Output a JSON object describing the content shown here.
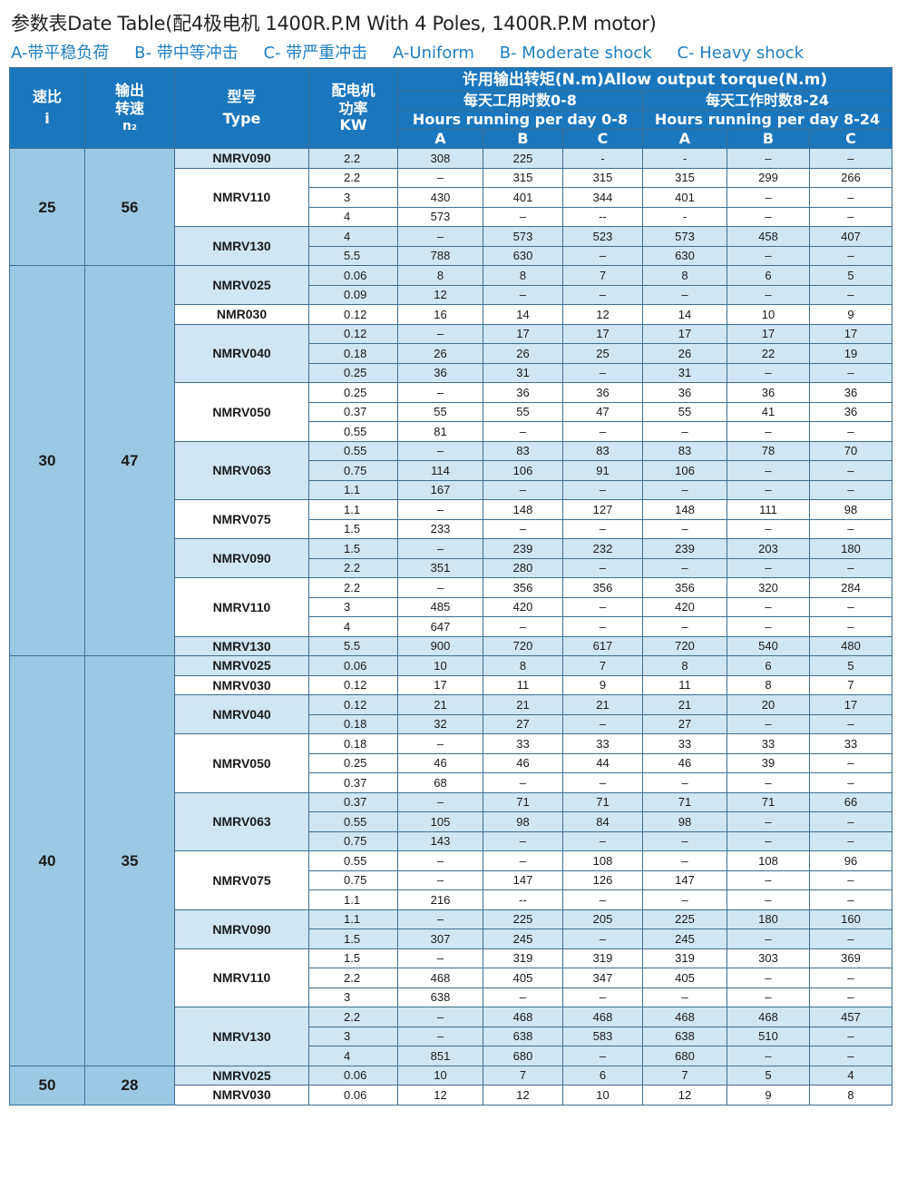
{
  "title": "参数表Date Table(配4极电机 1400R.P.M With 4 Poles, 1400R.P.M motor)",
  "legend": [
    "A-带平稳负荷",
    "B- 带中等冲击",
    "C- 带严重冲击",
    "A-Uniform",
    "B- Moderate shock",
    "C- Heavy shock"
  ],
  "header": {
    "ratio": [
      "速比",
      "i"
    ],
    "speed": [
      "输出",
      "转速",
      "n₂"
    ],
    "type": [
      "型号",
      "Type"
    ],
    "power": [
      "配电机",
      "功率",
      "KW"
    ],
    "torque": "许用输出转矩(N.m)Allow output torque(N.m)",
    "period1": [
      "每天工用时数0-8",
      "Hours running per day 0-8"
    ],
    "period2": [
      "每天工作时数8-24",
      "Hours running per day 8-24"
    ],
    "cols": [
      "A",
      "B",
      "C",
      "A",
      "B",
      "C"
    ]
  },
  "groups": [
    {
      "ratio": "25",
      "speed": "56",
      "models": [
        {
          "type": "NMRV090",
          "rows": [
            [
              "2.2",
              "308",
              "225",
              "-",
              "-",
              "–",
              "–"
            ]
          ]
        },
        {
          "type": "NMRV110",
          "rows": [
            [
              "2.2",
              "–",
              "315",
              "315",
              "315",
              "299",
              "266"
            ],
            [
              "3",
              "430",
              "401",
              "344",
              "401",
              "–",
              "–"
            ],
            [
              "4",
              "573",
              "–",
              "--",
              "-",
              "–",
              "–"
            ]
          ]
        },
        {
          "type": "NMRV130",
          "rows": [
            [
              "4",
              "–",
              "573",
              "523",
              "573",
              "458",
              "407"
            ],
            [
              "5.5",
              "788",
              "630",
              "–",
              "630",
              "–",
              "–"
            ]
          ]
        }
      ]
    },
    {
      "ratio": "30",
      "speed": "47",
      "models": [
        {
          "type": "NMRV025",
          "rows": [
            [
              "0.06",
              "8",
              "8",
              "7",
              "8",
              "6",
              "5"
            ],
            [
              "0.09",
              "12",
              "–",
              "–",
              "–",
              "–",
              "–"
            ]
          ]
        },
        {
          "type": "NMR030",
          "rows": [
            [
              "0.12",
              "16",
              "14",
              "12",
              "14",
              "10",
              "9"
            ]
          ]
        },
        {
          "type": "NMRV040",
          "rows": [
            [
              "0.12",
              "–",
              "17",
              "17",
              "17",
              "17",
              "17"
            ],
            [
              "0.18",
              "26",
              "26",
              "25",
              "26",
              "22",
              "19"
            ],
            [
              "0.25",
              "36",
              "31",
              "–",
              "31",
              "–",
              "–"
            ]
          ]
        },
        {
          "type": "NMRV050",
          "rows": [
            [
              "0.25",
              "–",
              "36",
              "36",
              "36",
              "36",
              "36"
            ],
            [
              "0.37",
              "55",
              "55",
              "47",
              "55",
              "41",
              "36"
            ],
            [
              "0.55",
              "81",
              "–",
              "–",
              "–",
              "–",
              "–"
            ]
          ]
        },
        {
          "type": "NMRV063",
          "rows": [
            [
              "0.55",
              "–",
              "83",
              "83",
              "83",
              "78",
              "70"
            ],
            [
              "0.75",
              "114",
              "106",
              "91",
              "106",
              "–",
              "–"
            ],
            [
              "1.1",
              "167",
              "–",
              "–",
              "–",
              "–",
              "–"
            ]
          ]
        },
        {
          "type": "NMRV075",
          "rows": [
            [
              "1.1",
              "–",
              "148",
              "127",
              "148",
              "111",
              "98"
            ],
            [
              "1.5",
              "233",
              "–",
              "–",
              "–",
              "–",
              "–"
            ]
          ]
        },
        {
          "type": "NMRV090",
          "rows": [
            [
              "1.5",
              "–",
              "239",
              "232",
              "239",
              "203",
              "180"
            ],
            [
              "2.2",
              "351",
              "280",
              "–",
              "–",
              "–",
              "–"
            ]
          ]
        },
        {
          "type": "NMRV110",
          "rows": [
            [
              "2.2",
              "–",
              "356",
              "356",
              "356",
              "320",
              "284"
            ],
            [
              "3",
              "485",
              "420",
              "–",
              "420",
              "–",
              "–"
            ],
            [
              "4",
              "647",
              "–",
              "–",
              "–",
              "–",
              "–"
            ]
          ]
        },
        {
          "type": "NMRV130",
          "rows": [
            [
              "5.5",
              "900",
              "720",
              "617",
              "720",
              "540",
              "480"
            ]
          ]
        }
      ]
    },
    {
      "ratio": "40",
      "speed": "35",
      "models": [
        {
          "type": "NMRV025",
          "rows": [
            [
              "0.06",
              "10",
              "8",
              "7",
              "8",
              "6",
              "5"
            ]
          ]
        },
        {
          "type": "NMRV030",
          "rows": [
            [
              "0.12",
              "17",
              "11",
              "9",
              "11",
              "8",
              "7"
            ]
          ]
        },
        {
          "type": "NMRV040",
          "rows": [
            [
              "0.12",
              "21",
              "21",
              "21",
              "21",
              "20",
              "17"
            ],
            [
              "0.18",
              "32",
              "27",
              "–",
              "27",
              "–",
              "–"
            ]
          ]
        },
        {
          "type": "NMRV050",
          "rows": [
            [
              "0.18",
              "–",
              "33",
              "33",
              "33",
              "33",
              "33"
            ],
            [
              "0.25",
              "46",
              "46",
              "44",
              "46",
              "39",
              "–"
            ],
            [
              "0.37",
              "68",
              "–",
              "–",
              "–",
              "–",
              "–"
            ]
          ]
        },
        {
          "type": "NMRV063",
          "rows": [
            [
              "0.37",
              "–",
              "71",
              "71",
              "71",
              "71",
              "66"
            ],
            [
              "0.55",
              "105",
              "98",
              "84",
              "98",
              "–",
              "–"
            ],
            [
              "0.75",
              "143",
              "–",
              "–",
              "–",
              "–",
              "–"
            ]
          ]
        },
        {
          "type": "NMRV075",
          "rows": [
            [
              "0.55",
              "–",
              "–",
              "108",
              "–",
              "108",
              "96"
            ],
            [
              "0.75",
              "–",
              "147",
              "126",
              "147",
              "–",
              "–"
            ],
            [
              "1.1",
              "216",
              "--",
              "–",
              "–",
              "–",
              "–"
            ]
          ]
        },
        {
          "type": "NMRV090",
          "rows": [
            [
              "1.1",
              "–",
              "225",
              "205",
              "225",
              "180",
              "160"
            ],
            [
              "1.5",
              "307",
              "245",
              "–",
              "245",
              "–",
              "–"
            ]
          ]
        },
        {
          "type": "NMRV110",
          "rows": [
            [
              "1.5",
              "–",
              "319",
              "319",
              "319",
              "303",
              "369"
            ],
            [
              "2.2",
              "468",
              "405",
              "347",
              "405",
              "–",
              "–"
            ],
            [
              "3",
              "638",
              "–",
              "–",
              "–",
              "–",
              "–"
            ]
          ]
        },
        {
          "type": "NMRV130",
          "rows": [
            [
              "2.2",
              "–",
              "468",
              "468",
              "468",
              "468",
              "457"
            ],
            [
              "3",
              "–",
              "638",
              "583",
              "638",
              "510",
              "–"
            ],
            [
              "4",
              "851",
              "680",
              "–",
              "680",
              "–",
              "–"
            ]
          ]
        }
      ]
    },
    {
      "ratio": "50",
      "speed": "28",
      "models": [
        {
          "type": "NMRV025",
          "rows": [
            [
              "0.06",
              "10",
              "7",
              "6",
              "7",
              "5",
              "4"
            ]
          ]
        },
        {
          "type": "NMRV030",
          "rows": [
            [
              "0.06",
              "12",
              "12",
              "10",
              "12",
              "9",
              "8"
            ]
          ]
        }
      ]
    }
  ]
}
